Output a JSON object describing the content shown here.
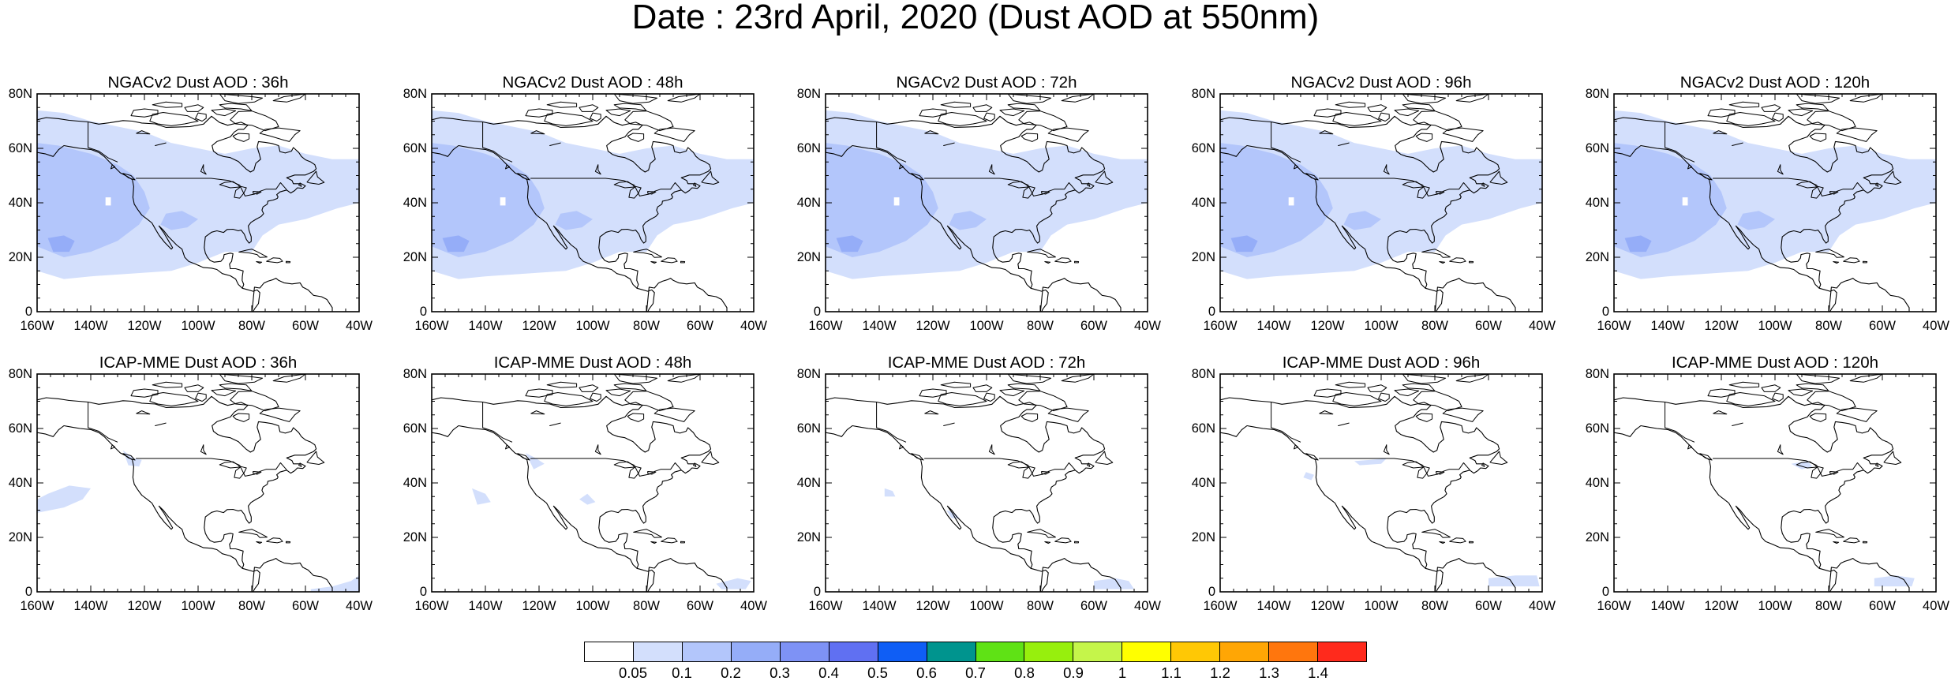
{
  "title": "Date : 23rd April, 2020 (Dust AOD at 550nm)",
  "panels": [
    {
      "title": "NGACv2 Dust AOD : 36h",
      "model": "NGACv2",
      "lead_time": "36h",
      "dust_coverage": "widespread"
    },
    {
      "title": "NGACv2 Dust AOD : 48h",
      "model": "NGACv2",
      "lead_time": "48h",
      "dust_coverage": "widespread"
    },
    {
      "title": "NGACv2 Dust AOD : 72h",
      "model": "NGACv2",
      "lead_time": "72h",
      "dust_coverage": "widespread"
    },
    {
      "title": "NGACv2 Dust AOD : 96h",
      "model": "NGACv2",
      "lead_time": "96h",
      "dust_coverage": "widespread"
    },
    {
      "title": "NGACv2 Dust AOD : 120h",
      "model": "NGACv2",
      "lead_time": "120h",
      "dust_coverage": "widespread"
    },
    {
      "title": "ICAP-MME Dust AOD : 36h",
      "model": "ICAP-MME",
      "lead_time": "36h",
      "dust_coverage": "sparse"
    },
    {
      "title": "ICAP-MME Dust AOD : 48h",
      "model": "ICAP-MME",
      "lead_time": "48h",
      "dust_coverage": "sparse"
    },
    {
      "title": "ICAP-MME Dust AOD : 72h",
      "model": "ICAP-MME",
      "lead_time": "72h",
      "dust_coverage": "sparse"
    },
    {
      "title": "ICAP-MME Dust AOD : 96h",
      "model": "ICAP-MME",
      "lead_time": "96h",
      "dust_coverage": "sparse"
    },
    {
      "title": "ICAP-MME Dust AOD : 120h",
      "model": "ICAP-MME",
      "lead_time": "120h",
      "dust_coverage": "sparse"
    }
  ],
  "axes": {
    "lat_labels": [
      "80N",
      "60N",
      "40N",
      "20N",
      "0"
    ],
    "lon_labels": [
      "160W",
      "140W",
      "120W",
      "100W",
      "80W",
      "60W",
      "40W"
    ],
    "lat_range": [
      0,
      80
    ],
    "lon_range": [
      -160,
      -40
    ]
  },
  "colorbar": {
    "labels": [
      "0.05",
      "0.1",
      "0.2",
      "0.3",
      "0.4",
      "0.5",
      "0.6",
      "0.7",
      "0.8",
      "0.9",
      "1",
      "1.1",
      "1.2",
      "1.3",
      "1.4"
    ],
    "colors": [
      "#ffffff",
      "#d3dffc",
      "#b3c6fb",
      "#95adf8",
      "#7e92f5",
      "#6070f2",
      "#0f5ef5",
      "#00948e",
      "#5fe215",
      "#97ef0d",
      "#c5f54a",
      "#ffff00",
      "#ffc805",
      "#ffa605",
      "#ff760d",
      "#ff2a1c"
    ]
  },
  "colors": {
    "dust_light": "#d3dffc",
    "dust_medium": "#b3c6fb",
    "dust_heavy": "#95adf8",
    "coast": "#000000"
  }
}
